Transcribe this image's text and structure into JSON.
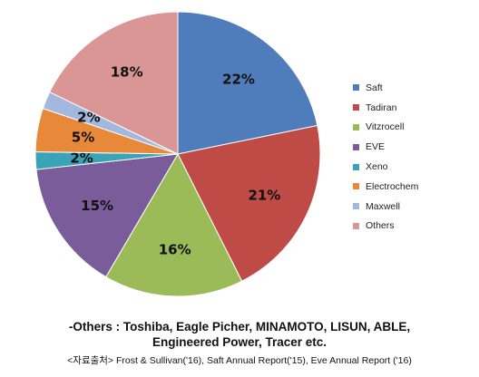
{
  "chart_data": {
    "type": "pie",
    "title": "",
    "legend_position": "right",
    "slices": [
      {
        "name": "Saft",
        "value": 22,
        "label": "22%",
        "color": "#4F7CBA"
      },
      {
        "name": "Tadiran",
        "value": 21,
        "label": "21%",
        "color": "#BF4B47"
      },
      {
        "name": "Vitzrocell",
        "value": 16,
        "label": "16%",
        "color": "#9BBB59"
      },
      {
        "name": "EVE",
        "value": 15,
        "label": "15%",
        "color": "#7A5C9A"
      },
      {
        "name": "Xeno",
        "value": 2,
        "label": "2%",
        "color": "#3BA3B8"
      },
      {
        "name": "Electrochem",
        "value": 5,
        "label": "5%",
        "color": "#E8893A"
      },
      {
        "name": "Maxwell",
        "value": 2,
        "label": "2%",
        "color": "#A3B8DE"
      },
      {
        "name": "Others",
        "value": 18,
        "label": "18%",
        "color": "#D99694"
      }
    ]
  },
  "note": {
    "line1": "-Others : Toshiba,  Eagle Picher, MINAMOTO,  LISUN, ABLE,",
    "line2": "Engineered Power, Tracer etc."
  },
  "source": "<자료출처> Frost & Sullivan('16), Saft Annual Report('15), Eve Annual Report ('16)"
}
